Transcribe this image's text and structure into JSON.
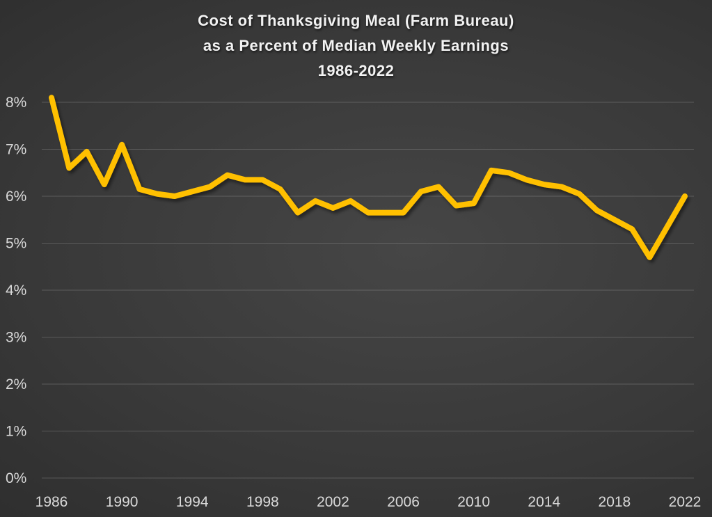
{
  "chart_data": {
    "type": "line",
    "title_lines": [
      "Cost of Thanksgiving Meal (Farm Bureau)",
      "as a Percent of Median Weekly Earnings",
      "1986-2022"
    ],
    "series": [
      {
        "name": "Thanksgiving meal cost as % of median weekly earnings",
        "values": [
          8.1,
          6.6,
          6.95,
          6.25,
          7.1,
          6.15,
          6.05,
          6.0,
          6.1,
          6.2,
          6.45,
          6.35,
          6.35,
          6.15,
          5.65,
          5.9,
          5.75,
          5.9,
          5.65,
          5.65,
          5.65,
          6.1,
          6.2,
          5.8,
          5.85,
          6.55,
          6.5,
          6.35,
          6.25,
          6.2,
          6.05,
          5.7,
          5.5,
          5.3,
          4.7,
          5.35,
          6.0
        ]
      }
    ],
    "x": [
      1986,
      1987,
      1988,
      1989,
      1990,
      1991,
      1992,
      1993,
      1994,
      1995,
      1996,
      1997,
      1998,
      1999,
      2000,
      2001,
      2002,
      2003,
      2004,
      2005,
      2006,
      2007,
      2008,
      2009,
      2010,
      2011,
      2012,
      2013,
      2014,
      2015,
      2016,
      2017,
      2018,
      2019,
      2020,
      2021,
      2022
    ],
    "x_ticks": [
      1986,
      1990,
      1994,
      1998,
      2002,
      2006,
      2010,
      2014,
      2018,
      2022
    ],
    "y_ticks": [
      {
        "value": 8,
        "label": "8%"
      },
      {
        "value": 7,
        "label": "7%"
      },
      {
        "value": 6,
        "label": "6%"
      },
      {
        "value": 5,
        "label": "5%"
      },
      {
        "value": 4,
        "label": "4%"
      },
      {
        "value": 3,
        "label": "3%"
      },
      {
        "value": 2,
        "label": "2%"
      },
      {
        "value": 1,
        "label": "1%"
      },
      {
        "value": 0,
        "label": "0%"
      }
    ],
    "ylim": [
      0,
      8
    ],
    "xlabel": "",
    "ylabel": "",
    "grid": true,
    "legend": "none",
    "colors": {
      "line": "#FFC000",
      "gridline": "rgba(255,255,255,0.18)",
      "tick_label": "#d9d9d9",
      "title": "#f2f2f2"
    }
  }
}
